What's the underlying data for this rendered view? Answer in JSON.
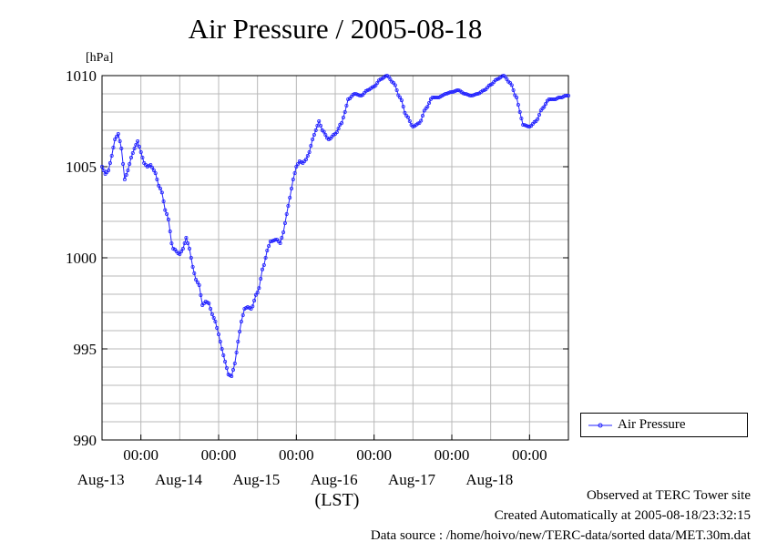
{
  "chart_data": {
    "type": "line",
    "title": "Air Pressure / 2005-08-18",
    "ylabel": "[hPa]",
    "xlabel": "(LST)",
    "ylim": [
      990,
      1010
    ],
    "yticks": [
      990,
      995,
      1000,
      1005,
      1010
    ],
    "ytick_labels": [
      "990",
      "995",
      "1000",
      "1005",
      "1010"
    ],
    "xlim_hours": [
      0,
      144
    ],
    "xlim_start": "2005-08-12 12:00",
    "xtick_time_label": "00:00",
    "xticks": [
      {
        "hours": 12,
        "time": "00:00",
        "date": "Aug-13"
      },
      {
        "hours": 36,
        "time": "00:00",
        "date": "Aug-14"
      },
      {
        "hours": 60,
        "time": "00:00",
        "date": "Aug-15"
      },
      {
        "hours": 84,
        "time": "00:00",
        "date": "Aug-16"
      },
      {
        "hours": 108,
        "time": "00:00",
        "date": "Aug-17"
      },
      {
        "hours": 132,
        "time": "00:00",
        "date": "Aug-18"
      }
    ],
    "grid": true,
    "legend_position": "right-bottom",
    "series": [
      {
        "name": "Air Pressure",
        "color": "#2222ff",
        "x": [
          0,
          1,
          2,
          3,
          4,
          5,
          6,
          7,
          8,
          9,
          10,
          11,
          12,
          13,
          14,
          15,
          16,
          18,
          20,
          22,
          24,
          25,
          26,
          27,
          28,
          29,
          30,
          31,
          32,
          33,
          34,
          35,
          36,
          37,
          38,
          39,
          40,
          41,
          42,
          43,
          44,
          45,
          46,
          48,
          50,
          51,
          52,
          54,
          55,
          56,
          57,
          58,
          59,
          60,
          61,
          62,
          63,
          64,
          65,
          66,
          67,
          68,
          70,
          72,
          74,
          75,
          76,
          78,
          80,
          82,
          84,
          86,
          88,
          90,
          92,
          94,
          96,
          98,
          100,
          102,
          104,
          105,
          106,
          108,
          110,
          112,
          114,
          116,
          118,
          120,
          122,
          124,
          126,
          128,
          129,
          130,
          132,
          134,
          136,
          138,
          140,
          141,
          142,
          143,
          144
        ],
        "y": [
          1005.0,
          1004.6,
          1004.8,
          1005.6,
          1006.5,
          1006.8,
          1006.0,
          1004.3,
          1004.8,
          1005.5,
          1006.0,
          1006.4,
          1005.8,
          1005.2,
          1005.0,
          1005.1,
          1004.8,
          1003.8,
          1002.4,
          1000.5,
          1000.2,
          1000.5,
          1001.1,
          1000.5,
          999.5,
          998.8,
          998.5,
          997.4,
          997.6,
          997.5,
          996.9,
          996.5,
          995.8,
          995.0,
          994.3,
          993.6,
          993.5,
          994.2,
          995.4,
          996.5,
          997.2,
          997.3,
          997.2,
          998.1,
          999.6,
          1000.4,
          1000.9,
          1001.0,
          1000.8,
          1001.4,
          1002.4,
          1003.3,
          1004.3,
          1005.0,
          1005.3,
          1005.2,
          1005.4,
          1005.8,
          1006.5,
          1007.0,
          1007.5,
          1007.0,
          1006.5,
          1006.8,
          1007.4,
          1008.0,
          1008.7,
          1009.0,
          1008.9,
          1009.2,
          1009.4,
          1009.8,
          1010.0,
          1009.6,
          1008.8,
          1007.8,
          1007.2,
          1007.4,
          1008.2,
          1008.8,
          1008.8,
          1008.9,
          1009.0,
          1009.1,
          1009.2,
          1009.0,
          1008.9,
          1009.0,
          1009.2,
          1009.5,
          1009.8,
          1010.0,
          1009.6,
          1008.8,
          1008.0,
          1007.3,
          1007.2,
          1007.5,
          1008.2,
          1008.7,
          1008.7,
          1008.8,
          1008.8,
          1008.9,
          1008.9
        ]
      }
    ]
  },
  "footer": {
    "observed": "Observed at TERC Tower site",
    "created": "Created Automatically at 2005-08-18/23:32:15",
    "source": "Data source : /home/hoivo/new/TERC-data/sorted  data/MET.30m.dat"
  }
}
